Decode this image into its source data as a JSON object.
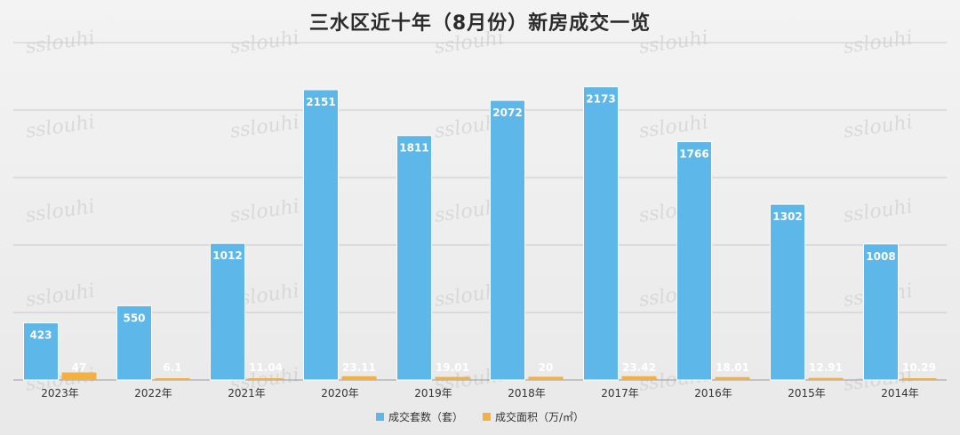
{
  "chart_data": {
    "type": "bar",
    "title": "三水区近十年（8月份）新房成交一览",
    "categories": [
      "2023年",
      "2022年",
      "2021年",
      "2020年",
      "2019年",
      "2018年",
      "2017年",
      "2016年",
      "2015年",
      "2014年"
    ],
    "series": [
      {
        "name": "成交套数（套）",
        "color": "#5db7e8",
        "values": [
          423,
          550,
          1012,
          2151,
          1811,
          2072,
          2173,
          1766,
          1302,
          1008
        ],
        "labels": [
          "423",
          "550",
          "1012",
          "2151",
          "1811",
          "2072",
          "2173",
          "1766",
          "1302",
          "1008"
        ]
      },
      {
        "name": "成交面积（万/㎡）",
        "color": "#f5b042",
        "values": [
          47,
          6.1,
          11.04,
          23.11,
          19.01,
          20,
          23.42,
          18.01,
          12.91,
          10.29
        ],
        "labels": [
          "47",
          "6.1",
          "11.04",
          "23.11",
          "19.01",
          "20",
          "23.42",
          "18.01",
          "12.91",
          "10.29"
        ]
      }
    ],
    "ylim": [
      0,
      2500
    ],
    "grid": true,
    "legend": "bottom",
    "xlabel": "",
    "ylabel": "",
    "watermark": "sslouhi"
  }
}
